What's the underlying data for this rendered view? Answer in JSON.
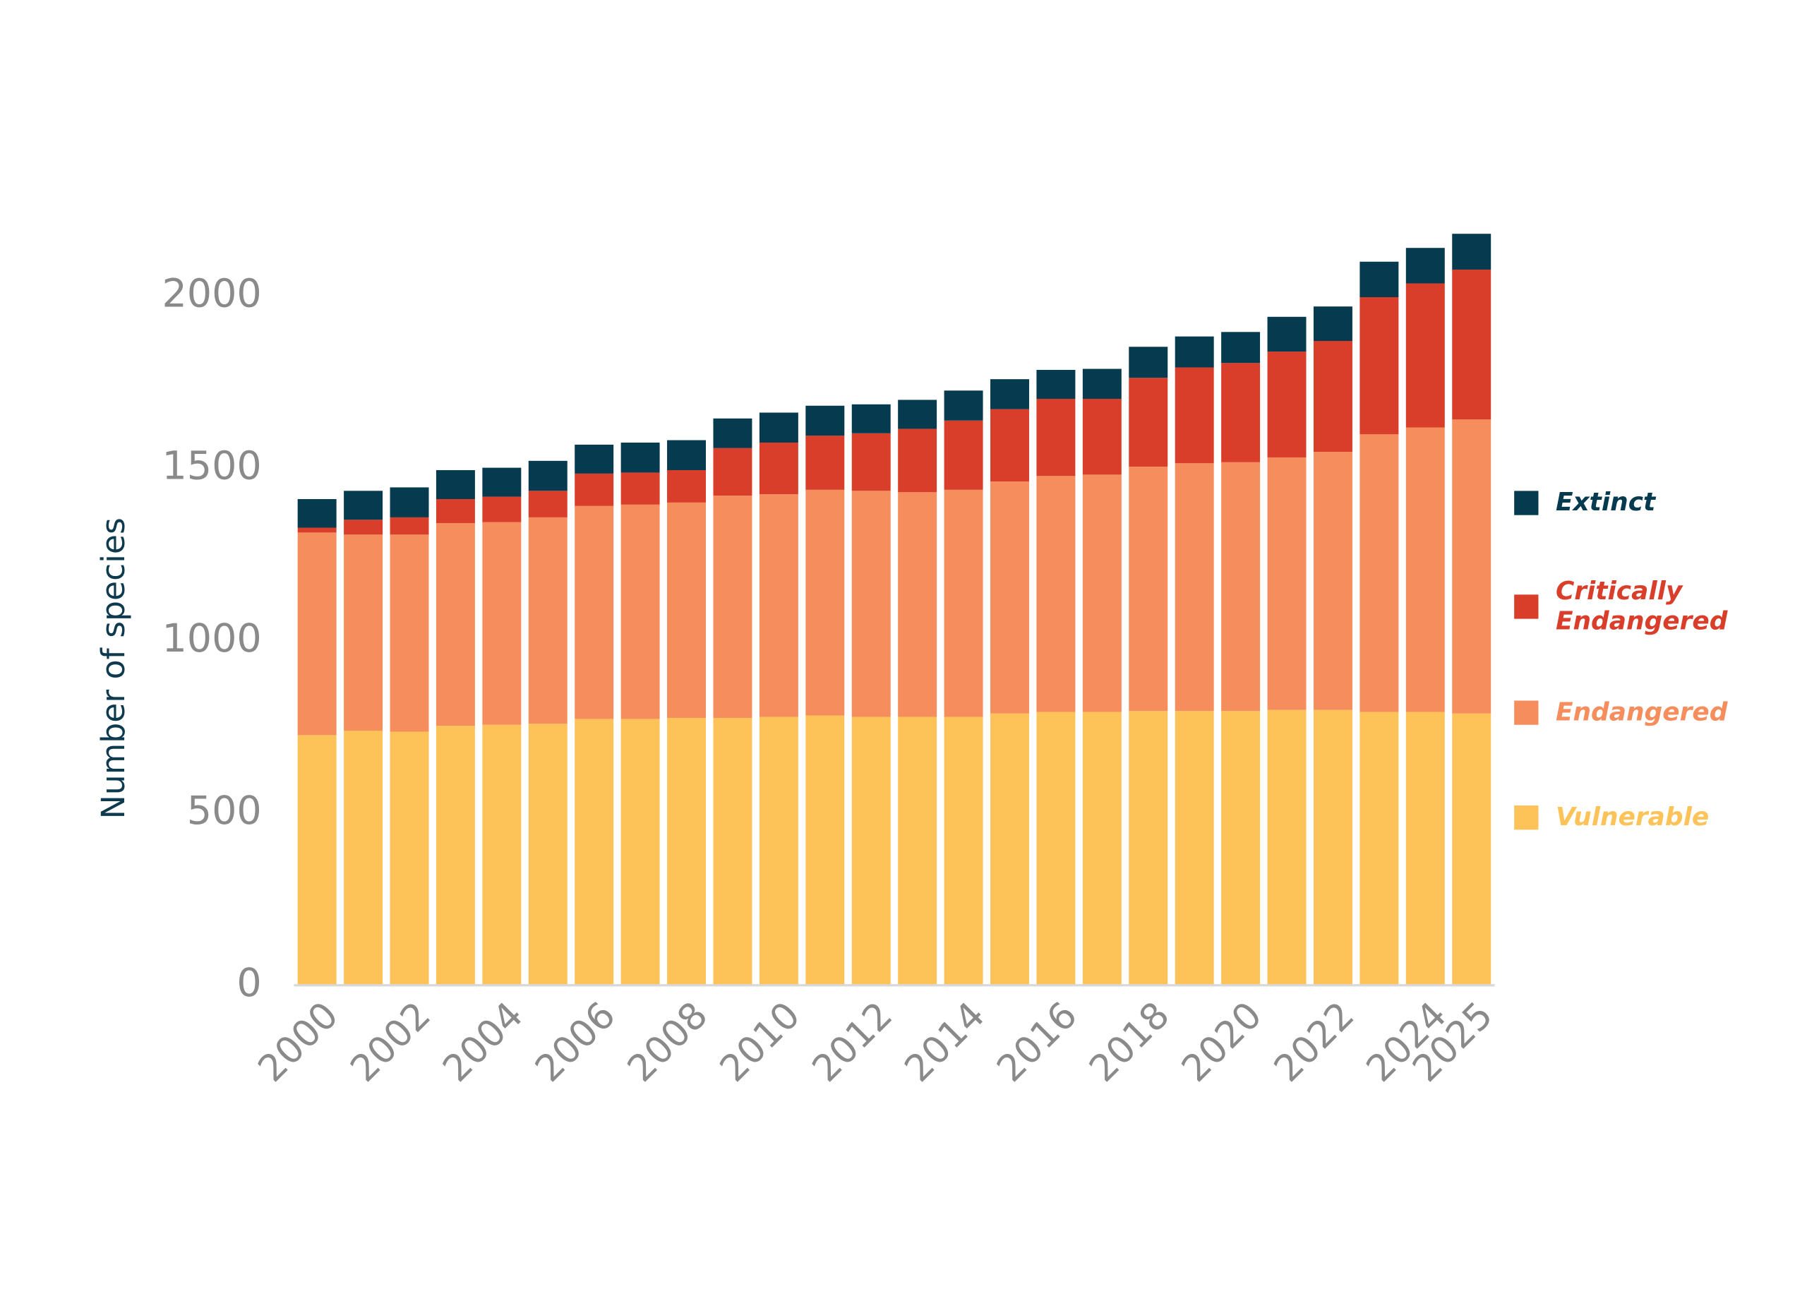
{
  "chart_data": {
    "type": "stacked-bar",
    "y_label": "Number of species",
    "categories": [
      "2000",
      null,
      "2002",
      null,
      "2004",
      null,
      "2006",
      null,
      "2008",
      null,
      "2010",
      null,
      "2012",
      null,
      "2014",
      null,
      "2016",
      null,
      "2018",
      null,
      "2020",
      null,
      "2022",
      null,
      "2024",
      "2025"
    ],
    "series": [
      {
        "name": "Vulnerable",
        "color": "#fdc358",
        "values": [
          726,
          739,
          736,
          753,
          756,
          759,
          773,
          773,
          776,
          776,
          779,
          783,
          779,
          779,
          779,
          789,
          793,
          793,
          796,
          796,
          796,
          799,
          799,
          793,
          793,
          789
        ]
      },
      {
        "name": "Endangered",
        "color": "#f68d5c",
        "values": [
          588,
          569,
          572,
          588,
          588,
          599,
          618,
          622,
          625,
          645,
          646,
          655,
          656,
          652,
          659,
          673,
          685,
          689,
          709,
          719,
          722,
          733,
          749,
          806,
          826,
          853
        ]
      },
      {
        "name": "Critically Endangered",
        "color": "#d93e2a",
        "values": [
          14,
          43,
          50,
          70,
          74,
          77,
          94,
          93,
          94,
          138,
          150,
          157,
          167,
          184,
          201,
          210,
          224,
          220,
          258,
          278,
          288,
          307,
          322,
          398,
          418,
          435
        ]
      },
      {
        "name": "Extinct",
        "color": "#053a4f",
        "values": [
          83,
          84,
          87,
          84,
          84,
          87,
          84,
          87,
          87,
          86,
          87,
          87,
          84,
          84,
          87,
          87,
          84,
          87,
          90,
          90,
          90,
          101,
          100,
          103,
          103,
          104
        ]
      }
    ],
    "ylim": [
      0,
      2200
    ],
    "yticks": [
      0,
      500,
      1000,
      1500,
      2000
    ],
    "grid": false,
    "legend": "right"
  }
}
